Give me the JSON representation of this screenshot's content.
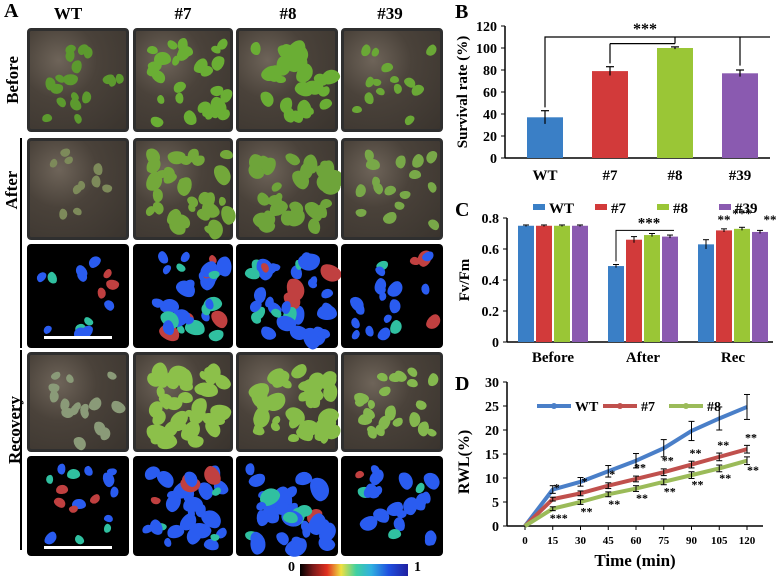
{
  "panelA": {
    "letter": "A",
    "columns": [
      "WT",
      "#7",
      "#8",
      "#39"
    ],
    "rows": [
      "Before",
      "After",
      "Recovery"
    ],
    "colorbar": {
      "min": "0",
      "max": "1"
    }
  },
  "chart_data": [
    {
      "panel": "B",
      "type": "bar",
      "ylabel": "Survival rate (%)",
      "categories": [
        "WT",
        "#7",
        "#8",
        "#39"
      ],
      "values": [
        37,
        79,
        100,
        77
      ],
      "errors": [
        6,
        4,
        1,
        3
      ],
      "colors": [
        "#3a7fc6",
        "#d23a3a",
        "#9ac636",
        "#8a5ab0"
      ],
      "ylim": [
        0,
        120
      ],
      "yticks": [
        "0",
        "20",
        "40",
        "60",
        "80",
        "100",
        "120"
      ],
      "significance": "***"
    },
    {
      "panel": "C",
      "type": "bar",
      "ylabel": "Fv/Fm",
      "groups": [
        "Before",
        "After",
        "Rec"
      ],
      "series": [
        {
          "name": "WT",
          "values": [
            0.75,
            0.49,
            0.63
          ],
          "errors": [
            0.005,
            0.01,
            0.03
          ]
        },
        {
          "name": "#7",
          "values": [
            0.75,
            0.66,
            0.72
          ],
          "errors": [
            0.005,
            0.02,
            0.01
          ]
        },
        {
          "name": "#8",
          "values": [
            0.75,
            0.69,
            0.73
          ],
          "errors": [
            0.005,
            0.01,
            0.01
          ]
        },
        {
          "name": "#39",
          "values": [
            0.75,
            0.68,
            0.71
          ],
          "errors": [
            0.005,
            0.01,
            0.01
          ]
        }
      ],
      "colors": [
        "#3a7fc6",
        "#d23a3a",
        "#9ac636",
        "#8a5ab0"
      ],
      "ylim": [
        0,
        0.8
      ],
      "yticks": [
        "0",
        "0.2",
        "0.4",
        "0.6",
        "0.8"
      ],
      "significance": {
        "after": "***",
        "rec": [
          "**",
          "**",
          "***",
          "**"
        ]
      }
    },
    {
      "panel": "D",
      "type": "line",
      "ylabel": "RWL(%)",
      "xlabel": "Time (min)",
      "x": [
        0,
        15,
        30,
        45,
        60,
        75,
        90,
        105,
        120
      ],
      "xticks": [
        "0",
        "15",
        "30",
        "45",
        "60",
        "75",
        "90",
        "105",
        "120"
      ],
      "yticks": [
        "0",
        "5",
        "10",
        "15",
        "20",
        "25",
        "30"
      ],
      "ylim": [
        0,
        30
      ],
      "series": [
        {
          "name": "WT",
          "values": [
            0,
            7.6,
            9.2,
            11.4,
            13.6,
            16.2,
            19.8,
            22.4,
            24.8
          ],
          "errors": [
            0,
            0.8,
            0.9,
            1.2,
            1.5,
            1.8,
            2.0,
            2.4,
            2.6
          ],
          "color": "#4a7fc8"
        },
        {
          "name": "#7",
          "values": [
            0,
            5.6,
            6.8,
            8.4,
            9.8,
            11.2,
            12.8,
            14.4,
            16.0
          ],
          "errors": [
            0,
            0.4,
            0.5,
            0.6,
            0.6,
            0.7,
            0.7,
            0.8,
            0.8
          ],
          "color": "#c0504d"
        },
        {
          "name": "#8",
          "values": [
            0,
            3.6,
            5.0,
            6.6,
            7.8,
            9.2,
            10.6,
            12.0,
            13.6
          ],
          "errors": [
            0,
            0.4,
            0.5,
            0.5,
            0.6,
            0.6,
            0.7,
            0.7,
            0.8
          ],
          "color": "#9bbb59"
        }
      ],
      "sig_upper": [
        "*",
        "*",
        "*",
        "**",
        "**",
        "**",
        "**",
        "**"
      ],
      "sig_lower": [
        "***",
        "**",
        "**",
        "**",
        "**",
        "**",
        "**",
        "**"
      ]
    }
  ]
}
